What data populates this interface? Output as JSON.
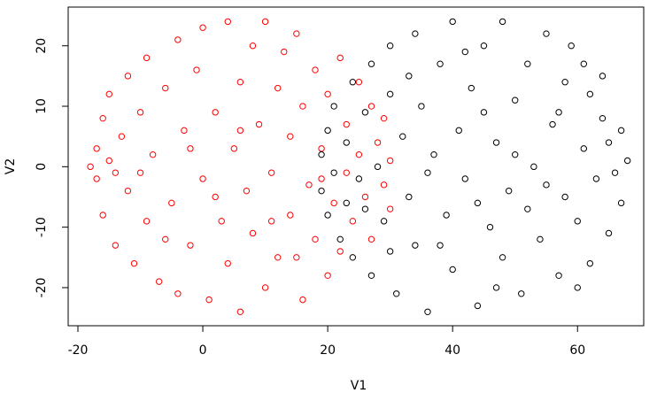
{
  "chart_data": {
    "type": "scatter",
    "x_label": "V1",
    "y_label": "V2",
    "xlim": [
      -21.56,
      70.6
    ],
    "ylim": [
      -26.3,
      26.4
    ],
    "xticks": [
      -20,
      0,
      20,
      40,
      60
    ],
    "yticks": [
      -20,
      -10,
      0,
      10,
      20
    ],
    "series": [
      {
        "color": "#ff0000",
        "x": [
          -18,
          -17,
          -17,
          -16,
          -16,
          -15,
          -14,
          -13,
          -12,
          -12,
          -11,
          -10,
          -9,
          -9,
          -8,
          -7,
          -6,
          -5,
          -4,
          -4,
          -3,
          -2,
          -1,
          0,
          0,
          1,
          2,
          3,
          4,
          4,
          5,
          6,
          6,
          7,
          8,
          8,
          9,
          10,
          10,
          11,
          12,
          12,
          13,
          14,
          14,
          15,
          16,
          16,
          17,
          18,
          18,
          19,
          20,
          20,
          21,
          22,
          22,
          23,
          24,
          25,
          25,
          26,
          27,
          27,
          28,
          29,
          29,
          30,
          30,
          -14,
          -10,
          -6,
          -2,
          2,
          6,
          11,
          15,
          19,
          23,
          -15
        ],
        "values": [
          0,
          3,
          -2,
          8,
          -8,
          12,
          -13,
          5,
          -4,
          15,
          -16,
          9,
          -9,
          18,
          2,
          -19,
          13,
          -6,
          21,
          -21,
          6,
          -13,
          16,
          -2,
          23,
          -22,
          9,
          -9,
          24,
          -16,
          3,
          -24,
          14,
          -4,
          20,
          -11,
          7,
          -20,
          24,
          -1,
          13,
          -15,
          19,
          -8,
          5,
          22,
          -22,
          10,
          -3,
          16,
          -12,
          3,
          -18,
          12,
          -6,
          18,
          -14,
          7,
          -9,
          14,
          2,
          -5,
          10,
          -12,
          4,
          -3,
          8,
          -7,
          1,
          -1,
          -1,
          -12,
          3,
          -5,
          6,
          -9,
          -15,
          -2,
          -1,
          1
        ]
      },
      {
        "color": "#000000",
        "x": [
          19,
          19,
          20,
          20,
          21,
          21,
          22,
          23,
          24,
          24,
          25,
          26,
          27,
          27,
          28,
          29,
          30,
          30,
          31,
          32,
          33,
          34,
          34,
          35,
          36,
          37,
          38,
          39,
          40,
          40,
          41,
          42,
          43,
          44,
          45,
          46,
          47,
          48,
          48,
          49,
          50,
          51,
          52,
          53,
          54,
          55,
          56,
          57,
          58,
          58,
          59,
          60,
          61,
          62,
          62,
          63,
          64,
          65,
          65,
          66,
          67,
          67,
          68,
          64,
          60,
          52,
          45,
          38,
          33,
          26,
          23,
          55,
          42,
          36,
          47,
          57,
          61,
          50,
          44,
          30
        ],
        "values": [
          2,
          -4,
          6,
          -8,
          10,
          -1,
          -12,
          4,
          14,
          -15,
          -2,
          9,
          -18,
          17,
          0,
          -9,
          20,
          12,
          -21,
          5,
          -5,
          22,
          -13,
          10,
          -24,
          2,
          17,
          -8,
          24,
          -17,
          6,
          -2,
          13,
          -23,
          20,
          -10,
          4,
          24,
          -15,
          -4,
          11,
          -21,
          17,
          0,
          -12,
          22,
          7,
          -18,
          -5,
          14,
          20,
          -9,
          3,
          -16,
          12,
          -2,
          8,
          -11,
          4,
          -1,
          6,
          -6,
          1,
          15,
          -20,
          -7,
          9,
          -13,
          15,
          -7,
          -6,
          -3,
          19,
          -1,
          -20,
          9,
          17,
          2,
          -6,
          -14
        ]
      }
    ]
  }
}
